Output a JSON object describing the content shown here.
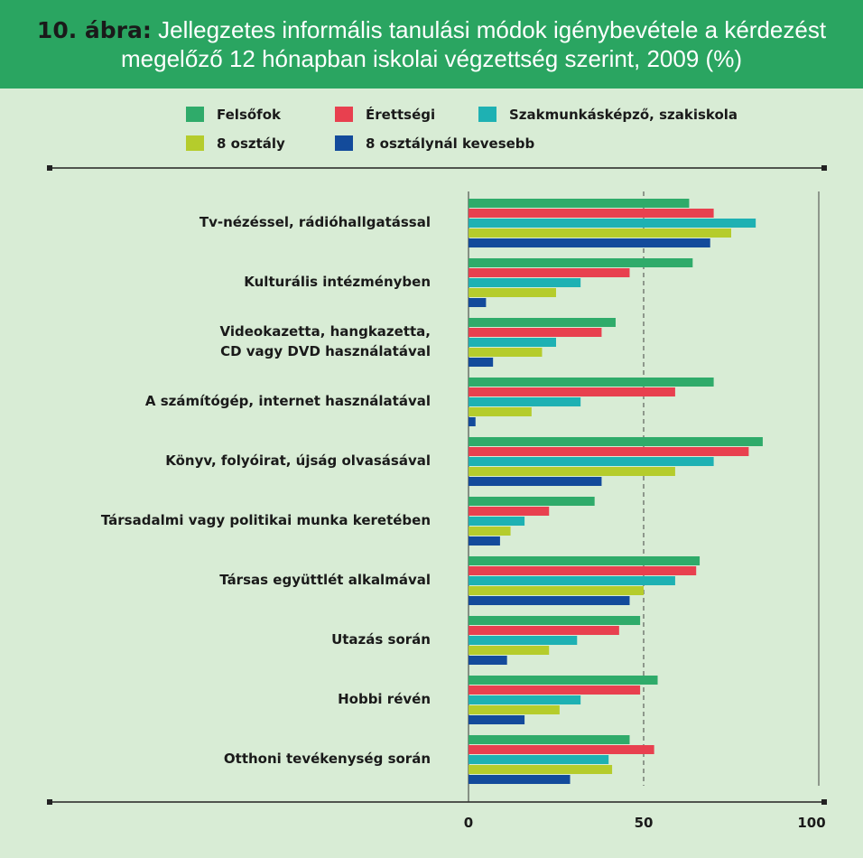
{
  "header": {
    "figure_label": "10. ábra:",
    "title_line1": "Jellegzetes informális tanulási módok igénybevétele a kérdezést",
    "title_line2": "megelőző 12 hónapban iskolai végzettség szerint, 2009 (%)"
  },
  "colors": {
    "background": "#d8ecd5",
    "header": "#2aa561",
    "Felsőfok": "#2fab6a",
    "Érettségi": "#e8404f",
    "Szakmunkásképző, szakiskola": "#1eb1b3",
    "8 osztály": "#b5cc2c",
    "8 osztálynál kevesebb": "#134b9b"
  },
  "chart_data": {
    "type": "bar",
    "orientation": "horizontal",
    "title": "10. ábra: Jellegzetes informális tanulási módok igénybevétele a kérdezést megelőző 12 hónapban iskolai végzettség szerint, 2009 (%)",
    "xlim": [
      0,
      100
    ],
    "xticks": [
      0,
      50,
      100
    ],
    "reference_line": 50,
    "legend_position": "top",
    "categories": [
      [
        "Tv-nézéssel, rádióhallgatással"
      ],
      [
        "Kulturális intézményben"
      ],
      [
        "Videokazetta, hangkazetta,",
        "CD vagy DVD használatával"
      ],
      [
        "A számítógép, internet használatával"
      ],
      [
        "Könyv, folyóirat, újság olvasásával"
      ],
      [
        "Társadalmi vagy politikai munka keretében"
      ],
      [
        "Társas együttlét alkalmával"
      ],
      [
        "Utazás során"
      ],
      [
        "Hobbi révén"
      ],
      [
        "Otthoni tevékenység során"
      ]
    ],
    "series": [
      {
        "name": "Felsőfok",
        "values": [
          63,
          64,
          42,
          70,
          84,
          36,
          66,
          49,
          54,
          46
        ]
      },
      {
        "name": "Érettségi",
        "values": [
          70,
          46,
          38,
          59,
          80,
          23,
          65,
          43,
          49,
          53
        ]
      },
      {
        "name": "Szakmunkásképző, szakiskola",
        "values": [
          82,
          32,
          25,
          32,
          70,
          16,
          59,
          31,
          32,
          40
        ]
      },
      {
        "name": "8 osztály",
        "values": [
          75,
          25,
          21,
          18,
          59,
          12,
          50,
          23,
          26,
          41
        ]
      },
      {
        "name": "8 osztálynál kevesebb",
        "values": [
          69,
          5,
          7,
          2,
          38,
          9,
          46,
          11,
          16,
          29
        ]
      }
    ]
  }
}
